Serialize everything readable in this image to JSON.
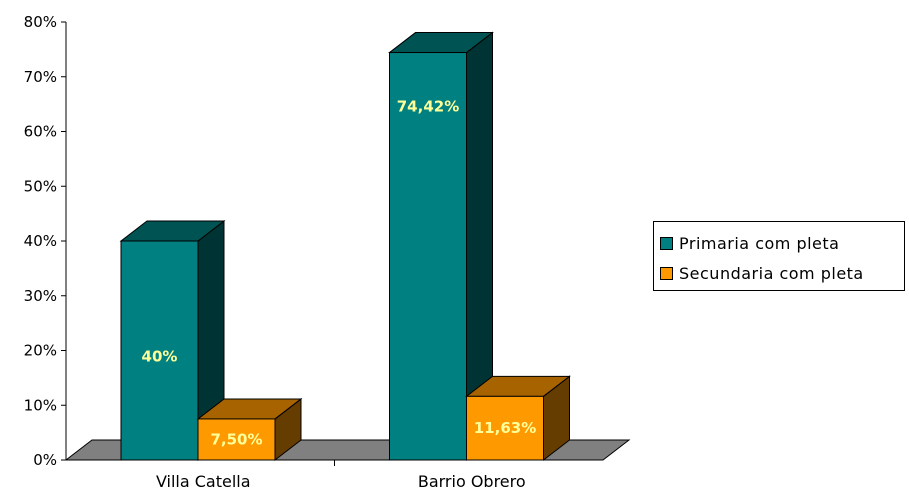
{
  "chart_data": {
    "type": "bar",
    "style": "3d-clustered-column",
    "categories": [
      "Villa Catella",
      "Barrio Obrero"
    ],
    "series": [
      {
        "name": "Primaria com pleta",
        "values": [
          40,
          74.42
        ],
        "labels": [
          "40%",
          "74,42%"
        ],
        "color": "#008080"
      },
      {
        "name": "Secundaria com pleta",
        "values": [
          7.5,
          11.63
        ],
        "labels": [
          "7,50%",
          "11,63%"
        ],
        "color": "#FF9900"
      }
    ],
    "y_ticks": [
      "0%",
      "10%",
      "20%",
      "30%",
      "40%",
      "50%",
      "60%",
      "70%",
      "80%"
    ],
    "ylim": [
      0,
      80
    ],
    "grid": false,
    "legend_position": "right",
    "floor_color": "#808080"
  }
}
